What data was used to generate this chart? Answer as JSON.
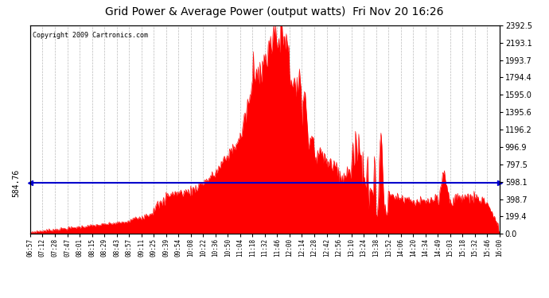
{
  "title": "Grid Power & Average Power (output watts)  Fri Nov 20 16:26",
  "copyright": "Copyright 2009 Cartronics.com",
  "average_line": 584.76,
  "avg_label": "584.76",
  "y_max": 2392.5,
  "y_min": 0.0,
  "y_ticks": [
    0.0,
    199.4,
    398.7,
    598.1,
    797.5,
    996.9,
    1196.2,
    1395.6,
    1595.0,
    1794.4,
    1993.7,
    2193.1,
    2392.5
  ],
  "background_color": "#ffffff",
  "fill_color": "#ff0000",
  "avg_line_color": "#0000cc",
  "grid_color": "#bbbbbb",
  "x_labels": [
    "06:57",
    "07:12",
    "07:28",
    "07:47",
    "08:01",
    "08:15",
    "08:29",
    "08:43",
    "08:57",
    "09:11",
    "09:25",
    "09:39",
    "09:54",
    "10:08",
    "10:22",
    "10:36",
    "10:50",
    "11:04",
    "11:18",
    "11:32",
    "11:46",
    "12:00",
    "12:14",
    "12:28",
    "12:42",
    "12:56",
    "13:10",
    "13:24",
    "13:38",
    "13:52",
    "14:06",
    "14:20",
    "14:34",
    "14:49",
    "15:03",
    "15:18",
    "15:32",
    "15:46",
    "16:00"
  ]
}
